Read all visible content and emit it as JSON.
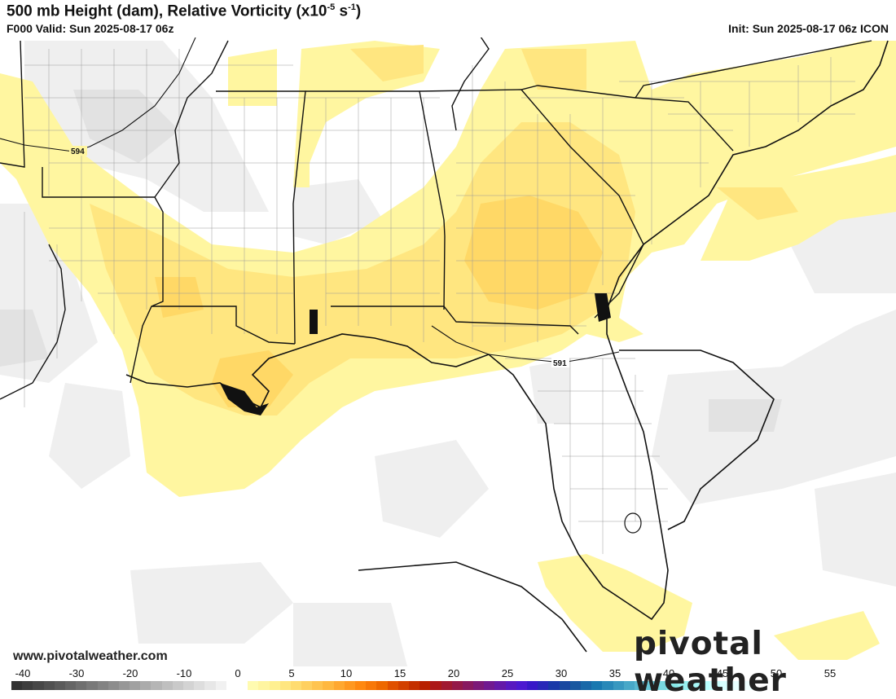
{
  "header": {
    "title": "500 mb Height (dam), Relative Vorticity (x10",
    "title_exp": "-5",
    "title_unit": " s",
    "title_unit_exp": "-1",
    "title_close": ")",
    "valid": "F000 Valid: Sun 2025-08-17 06z",
    "init": "Init: Sun 2025-08-17 06z ICON"
  },
  "map": {
    "contour_labels": [
      "594",
      "591"
    ],
    "colors": {
      "positive_light": "#fff6a0",
      "positive_mid": "#ffe680",
      "positive_strong": "#ffd866",
      "negative_light": "#efefef",
      "negative_mid": "#e0e0e0",
      "border": "#111111",
      "county": "#888888"
    }
  },
  "footer": {
    "website": "www.pivotalweather.com",
    "brand": "pivotal weather"
  },
  "colorbar": {
    "tick_labels": [
      "-40",
      "-30",
      "-20",
      "-10",
      "0",
      "5",
      "10",
      "15",
      "20",
      "25",
      "30",
      "35",
      "40",
      "45",
      "50",
      "55"
    ],
    "colors": [
      "#333333",
      "#3d3d3d",
      "#474747",
      "#515151",
      "#5b5b5b",
      "#656565",
      "#6f6f6f",
      "#797979",
      "#838383",
      "#8d8d8d",
      "#979797",
      "#a1a1a1",
      "#ababab",
      "#b5b5b5",
      "#bfbfbf",
      "#c9c9c9",
      "#d3d3d3",
      "#dddddd",
      "#e7e7e7",
      "#f1f1f1",
      "#ffffff",
      "#ffffff",
      "#fffbb0",
      "#fff5a0",
      "#fff090",
      "#ffe680",
      "#ffdc70",
      "#ffd060",
      "#ffc450",
      "#ffb840",
      "#ffa830",
      "#ff9820",
      "#ff8810",
      "#f87808",
      "#ee6800",
      "#e05000",
      "#d24000",
      "#c43000",
      "#b82000",
      "#ac1818",
      "#a01830",
      "#941848",
      "#881860",
      "#7c1878",
      "#701890",
      "#6418a8",
      "#5818c0",
      "#4c18d0",
      "#3818c8",
      "#2828b8",
      "#1838a8",
      "#1848a0",
      "#1858a0",
      "#1868a8",
      "#1878b0",
      "#2888b8",
      "#3898c0",
      "#48a8c8",
      "#58b8d0",
      "#68c8d8",
      "#78d8e0",
      "#88e8e8",
      "#98f0f0",
      "#a8f8f8",
      "#b8ffff",
      "#c8ffff",
      "#d8ffff",
      "#e8ffff",
      "#f0ffff"
    ]
  }
}
